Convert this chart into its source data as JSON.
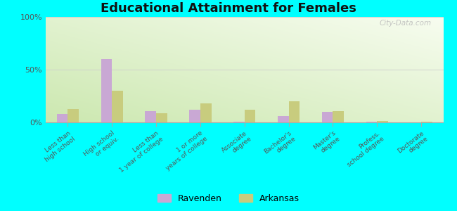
{
  "title": "Educational Attainment for Females",
  "categories": [
    "Less than\nhigh school",
    "High school\nor equiv.",
    "Less than\n1 year of college",
    "1 or more\nyears of college",
    "Associate\ndegree",
    "Bachelor's\ndegree",
    "Master's\ndegree",
    "Profess.\nschool degree",
    "Doctorate\ndegree"
  ],
  "ravenden": [
    8.0,
    60.0,
    11.0,
    12.0,
    0.5,
    6.0,
    10.0,
    0.5,
    0.0
  ],
  "arkansas": [
    13.0,
    30.0,
    9.0,
    18.0,
    12.0,
    20.0,
    11.0,
    1.5,
    1.0
  ],
  "ravenden_color": "#c9a8d4",
  "arkansas_color": "#c8cc7e",
  "bg_outer": "#00ffff",
  "bg_plot_tl": "#f0f8e8",
  "bg_plot_br": "#d8ecc0",
  "ylim": [
    0,
    100
  ],
  "yticks": [
    0,
    50,
    100
  ],
  "ytick_labels": [
    "0%",
    "50%",
    "100%"
  ],
  "watermark": "City-Data.com",
  "legend_ravenden": "Ravenden",
  "legend_arkansas": "Arkansas",
  "bar_width": 0.25
}
